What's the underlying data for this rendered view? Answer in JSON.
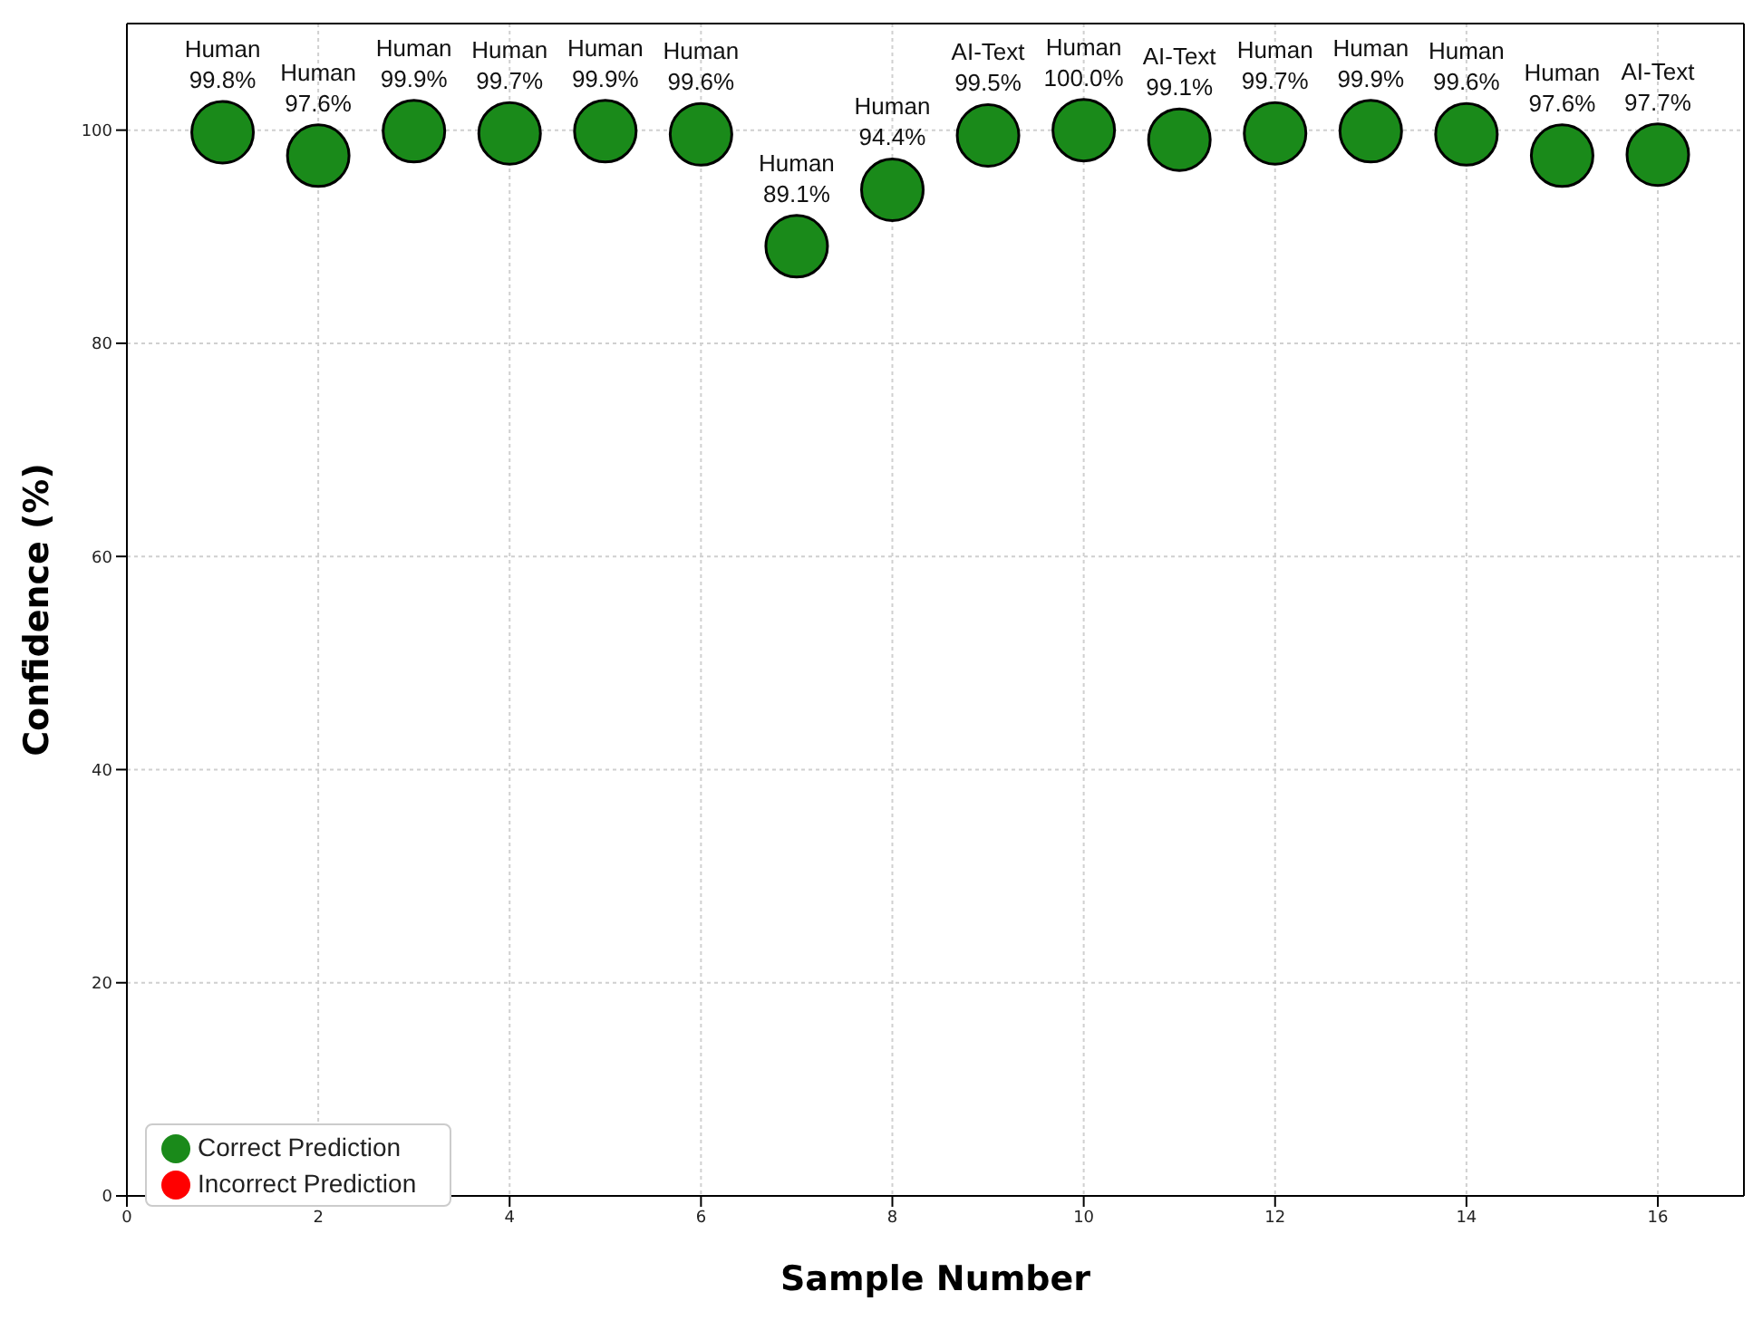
{
  "chart_data": {
    "type": "scatter",
    "xlabel": "Sample Number",
    "ylabel": "Confidence (%)",
    "x": [
      1,
      2,
      3,
      4,
      5,
      6,
      7,
      8,
      9,
      10,
      11,
      12,
      13,
      14,
      15,
      16
    ],
    "series": [
      {
        "name": "Correct Prediction",
        "color": "#1a8a1a",
        "values": [
          99.8,
          97.6,
          99.9,
          99.7,
          99.9,
          99.6,
          89.1,
          94.4,
          99.5,
          100.0,
          99.1,
          99.7,
          99.9,
          99.6,
          97.6,
          97.7
        ],
        "value_labels": [
          "Human\n99.8%",
          "Human\n97.6%",
          "Human\n99.9%",
          "Human\n99.7%",
          "Human\n99.9%",
          "Human\n99.6%",
          "Human\n89.1%",
          "Human\n94.4%",
          "AI-Text\n99.5%",
          "Human\n100.0%",
          "AI-Text\n99.1%",
          "Human\n99.7%",
          "Human\n99.9%",
          "Human\n99.6%",
          "Human\n97.6%",
          "AI-Text\n97.7%"
        ]
      },
      {
        "name": "Incorrect Prediction",
        "color": "#ff0000",
        "values": [
          null,
          null,
          null,
          null,
          null,
          null,
          null,
          null,
          null,
          null,
          null,
          null,
          null,
          null,
          null,
          null
        ]
      }
    ],
    "xlim": [
      0,
      16.9
    ],
    "xticks": [
      0,
      2,
      4,
      6,
      8,
      10,
      12,
      14,
      16
    ],
    "ylim": [
      0,
      110
    ],
    "yticks": [
      0,
      20,
      40,
      60,
      80,
      100
    ],
    "grid": true,
    "legend": "bottom left",
    "marker": "circle"
  }
}
